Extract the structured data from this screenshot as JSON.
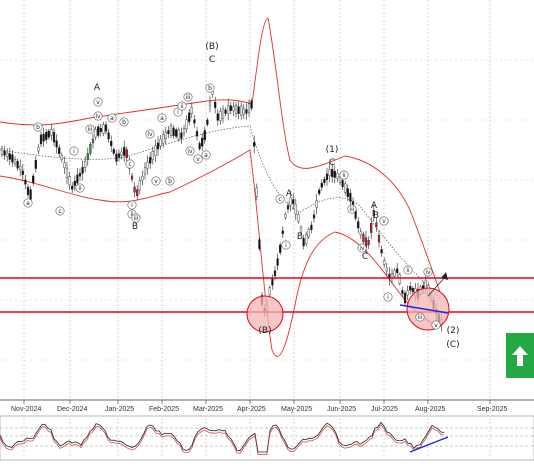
{
  "chart_data": [
    {
      "type": "candlestick",
      "x_axis_labels": [
        "Nov-2024",
        "Dec-2024",
        "Jan-2025",
        "Feb-2025",
        "Mar-2025",
        "Apr-2025",
        "May-2025",
        "Jun-2025",
        "Jul-2025",
        "Aug-2025",
        "Sep-2025"
      ],
      "grid": true,
      "overlays": [
        "bollinger-bands",
        "moving-average"
      ],
      "horizontal_levels": [
        "upper-resistance-line",
        "lower-support-line"
      ],
      "trend_arrow": "up",
      "wave_labels_major": [
        "(B)",
        "C",
        "A",
        "B",
        "(1)",
        "C",
        "A",
        "B",
        "A",
        "B",
        "C",
        "(2)",
        "(C)",
        "(B)"
      ],
      "wave_labels_minor": [
        "a",
        "b",
        "c",
        "i",
        "ii",
        "iii",
        "iv",
        "v",
        "a",
        "b",
        "c",
        "i",
        "ii",
        "iii",
        "iv",
        "v",
        "a",
        "b",
        "i",
        "ii",
        "iii",
        "iv",
        "v",
        "a",
        "b",
        "c",
        "i",
        "ii",
        "iii",
        "iv",
        "v",
        "i",
        "ii",
        "iii",
        "iv",
        "v"
      ]
    },
    {
      "type": "line",
      "name": "oscillator",
      "grid": true,
      "trend_line": "up"
    }
  ],
  "badge": {
    "icon": "up-arrow-icon",
    "color": "#22a845"
  },
  "colors": {
    "bands": "#e03030",
    "levels": "#e8001c",
    "trend_line": "#1c2bd6",
    "circle_fill": "#f3b6b6",
    "badge": "#22a845"
  }
}
